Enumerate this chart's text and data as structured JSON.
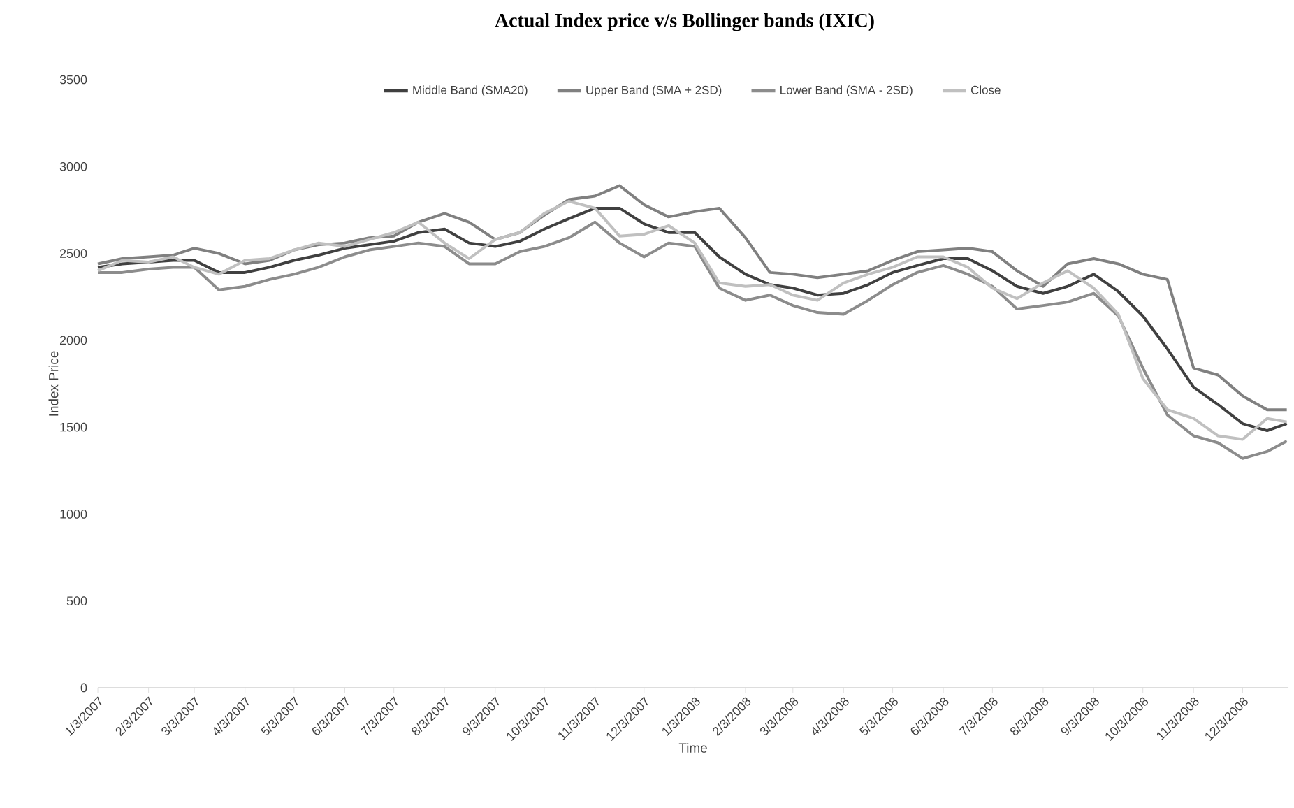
{
  "chart_data": {
    "type": "line",
    "title": "Actual Index price v/s Bollinger bands (IXIC)",
    "xlabel": "Time",
    "ylabel": "Index Price",
    "x": [
      "2007-01-03",
      "2007-01-18",
      "2007-02-03",
      "2007-02-18",
      "2007-03-03",
      "2007-03-18",
      "2007-04-03",
      "2007-04-18",
      "2007-05-03",
      "2007-05-18",
      "2007-06-03",
      "2007-06-18",
      "2007-07-03",
      "2007-07-18",
      "2007-08-03",
      "2007-08-18",
      "2007-09-03",
      "2007-09-18",
      "2007-10-03",
      "2007-10-18",
      "2007-11-03",
      "2007-11-18",
      "2007-12-03",
      "2007-12-18",
      "2008-01-03",
      "2008-01-18",
      "2008-02-03",
      "2008-02-18",
      "2008-03-03",
      "2008-03-18",
      "2008-04-03",
      "2008-04-18",
      "2008-05-03",
      "2008-05-18",
      "2008-06-03",
      "2008-06-18",
      "2008-07-03",
      "2008-07-18",
      "2008-08-03",
      "2008-08-18",
      "2008-09-03",
      "2008-09-18",
      "2008-10-03",
      "2008-10-18",
      "2008-11-03",
      "2008-11-18",
      "2008-12-03",
      "2008-12-18",
      "2008-12-30"
    ],
    "series": [
      {
        "name": "Middle Band (SMA20)",
        "color": "#404040",
        "values": [
          2420,
          2440,
          2450,
          2460,
          2460,
          2390,
          2390,
          2420,
          2460,
          2490,
          2530,
          2550,
          2570,
          2620,
          2640,
          2560,
          2540,
          2570,
          2640,
          2700,
          2760,
          2760,
          2670,
          2620,
          2620,
          2480,
          2380,
          2320,
          2300,
          2260,
          2270,
          2320,
          2390,
          2430,
          2470,
          2470,
          2400,
          2310,
          2270,
          2310,
          2380,
          2280,
          2140,
          1950,
          1730,
          1630,
          1520,
          1480,
          1520
        ]
      },
      {
        "name": "Upper Band (SMA + 2SD)",
        "color": "#808080",
        "values": [
          2440,
          2470,
          2480,
          2490,
          2530,
          2500,
          2440,
          2460,
          2520,
          2550,
          2560,
          2590,
          2600,
          2680,
          2730,
          2680,
          2580,
          2620,
          2720,
          2810,
          2830,
          2890,
          2780,
          2710,
          2740,
          2760,
          2590,
          2390,
          2380,
          2360,
          2380,
          2400,
          2460,
          2510,
          2520,
          2530,
          2510,
          2400,
          2310,
          2440,
          2470,
          2440,
          2380,
          2350,
          1840,
          1800,
          1680,
          1600,
          1600
        ]
      },
      {
        "name": "Lower Band (SMA - 2SD)",
        "color": "#8c8c8c",
        "values": [
          2390,
          2390,
          2410,
          2420,
          2420,
          2290,
          2310,
          2350,
          2380,
          2420,
          2480,
          2520,
          2540,
          2560,
          2540,
          2440,
          2440,
          2510,
          2540,
          2590,
          2680,
          2560,
          2480,
          2560,
          2540,
          2300,
          2230,
          2260,
          2200,
          2160,
          2150,
          2230,
          2320,
          2390,
          2430,
          2380,
          2310,
          2180,
          2200,
          2220,
          2270,
          2140,
          1840,
          1570,
          1450,
          1410,
          1320,
          1360,
          1420
        ]
      },
      {
        "name": "Close",
        "color": "#c0c0c0",
        "values": [
          2400,
          2460,
          2450,
          2480,
          2420,
          2380,
          2460,
          2470,
          2520,
          2560,
          2540,
          2580,
          2620,
          2680,
          2560,
          2470,
          2580,
          2620,
          2730,
          2800,
          2760,
          2600,
          2610,
          2660,
          2560,
          2330,
          2310,
          2320,
          2260,
          2230,
          2330,
          2380,
          2420,
          2480,
          2480,
          2420,
          2300,
          2240,
          2330,
          2400,
          2300,
          2150,
          1780,
          1600,
          1550,
          1450,
          1430,
          1550,
          1530
        ]
      }
    ],
    "xlim": [
      "2007-01-03",
      "2008-12-31"
    ],
    "ylim": [
      0,
      3500
    ],
    "xticks": [
      {
        "value": "2007-01-03",
        "label": "1/3/2007"
      },
      {
        "value": "2007-02-03",
        "label": "2/3/2007"
      },
      {
        "value": "2007-03-03",
        "label": "3/3/2007"
      },
      {
        "value": "2007-04-03",
        "label": "4/3/2007"
      },
      {
        "value": "2007-05-03",
        "label": "5/3/2007"
      },
      {
        "value": "2007-06-03",
        "label": "6/3/2007"
      },
      {
        "value": "2007-07-03",
        "label": "7/3/2007"
      },
      {
        "value": "2007-08-03",
        "label": "8/3/2007"
      },
      {
        "value": "2007-09-03",
        "label": "9/3/2007"
      },
      {
        "value": "2007-10-03",
        "label": "10/3/2007"
      },
      {
        "value": "2007-11-03",
        "label": "11/3/2007"
      },
      {
        "value": "2007-12-03",
        "label": "12/3/2007"
      },
      {
        "value": "2008-01-03",
        "label": "1/3/2008"
      },
      {
        "value": "2008-02-03",
        "label": "2/3/2008"
      },
      {
        "value": "2008-03-03",
        "label": "3/3/2008"
      },
      {
        "value": "2008-04-03",
        "label": "4/3/2008"
      },
      {
        "value": "2008-05-03",
        "label": "5/3/2008"
      },
      {
        "value": "2008-06-03",
        "label": "6/3/2008"
      },
      {
        "value": "2008-07-03",
        "label": "7/3/2008"
      },
      {
        "value": "2008-08-03",
        "label": "8/3/2008"
      },
      {
        "value": "2008-09-03",
        "label": "9/3/2008"
      },
      {
        "value": "2008-10-03",
        "label": "10/3/2008"
      },
      {
        "value": "2008-11-03",
        "label": "11/3/2008"
      },
      {
        "value": "2008-12-03",
        "label": "12/3/2008"
      }
    ],
    "yticks": [
      0,
      500,
      1000,
      1500,
      2000,
      2500,
      3000,
      3500
    ],
    "legend": "top"
  }
}
